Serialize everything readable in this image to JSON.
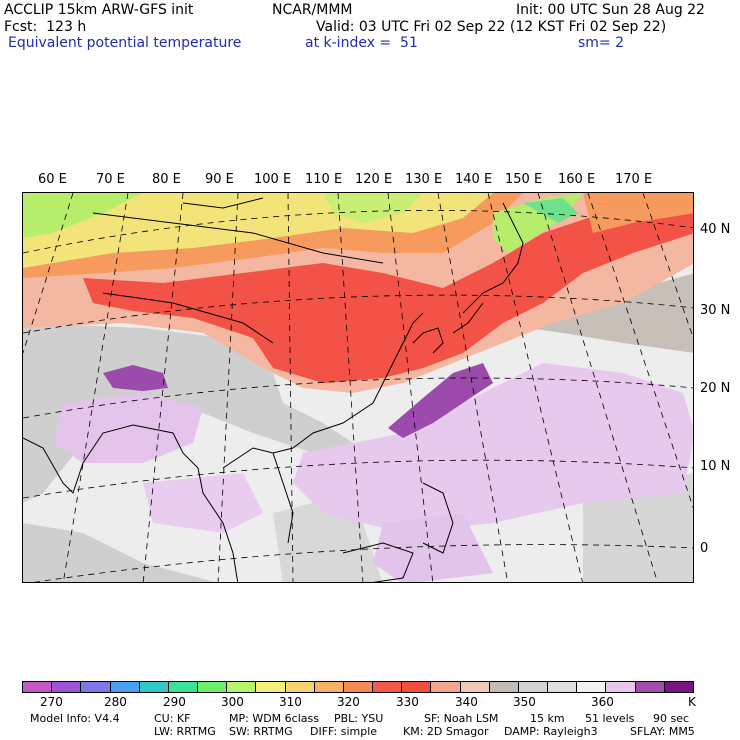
{
  "header": {
    "model": "ACCLIP 15km ARW-GFS init",
    "org": "NCAR/MMM",
    "init": "Init: 00 UTC Sun 28 Aug 22",
    "fcst": "Fcst:  123 h",
    "valid": "Valid: 03 UTC Fri 02 Sep 22 (12 KST Fri 02 Sep 22)",
    "field": "Equivalent potential temperature",
    "level": "at k-index =  51",
    "smooth": "sm= 2"
  },
  "map": {
    "lon_labels": [
      "60 E",
      "70 E",
      "80 E",
      "90 E",
      "100 E",
      "110 E",
      "120 E",
      "130 E",
      "140 E",
      "150 E",
      "160 E",
      "170 E"
    ],
    "lat_labels": [
      "40 N",
      "30 N",
      "20 N",
      "10 N",
      "0"
    ]
  },
  "colorbar": {
    "colors": [
      "#c558c8",
      "#9b55d6",
      "#7c7ae8",
      "#4aa0f0",
      "#30c9c6",
      "#3de09a",
      "#6cf06a",
      "#b5f56a",
      "#f0f07a",
      "#f7d46c",
      "#f7b064",
      "#f58a55",
      "#f45a4c",
      "#f2503c",
      "#f4a58c",
      "#f0c8b8",
      "#c4bcb4",
      "#d2d2d2",
      "#dedede",
      "#f2f2f2",
      "#e7c8ec",
      "#a44cae",
      "#7a1480"
    ],
    "labels": [
      "270",
      "280",
      "290",
      "300",
      "310",
      "320",
      "330",
      "340",
      "350",
      "360",
      "K"
    ]
  },
  "footer": {
    "line1": [
      "Model Info: V4.4",
      "CU: KF",
      "MP: WDM 6class",
      "PBL: YSU",
      "SF: Noah LSM",
      "15 km",
      "51 levels",
      "90 sec"
    ],
    "line2": [
      "LW: RRTMG",
      "SW: RRTMG",
      "DIFF: simple",
      "KM: 2D Smagor",
      "DAMP: Rayleigh3",
      "SFLAY: MM5"
    ]
  }
}
